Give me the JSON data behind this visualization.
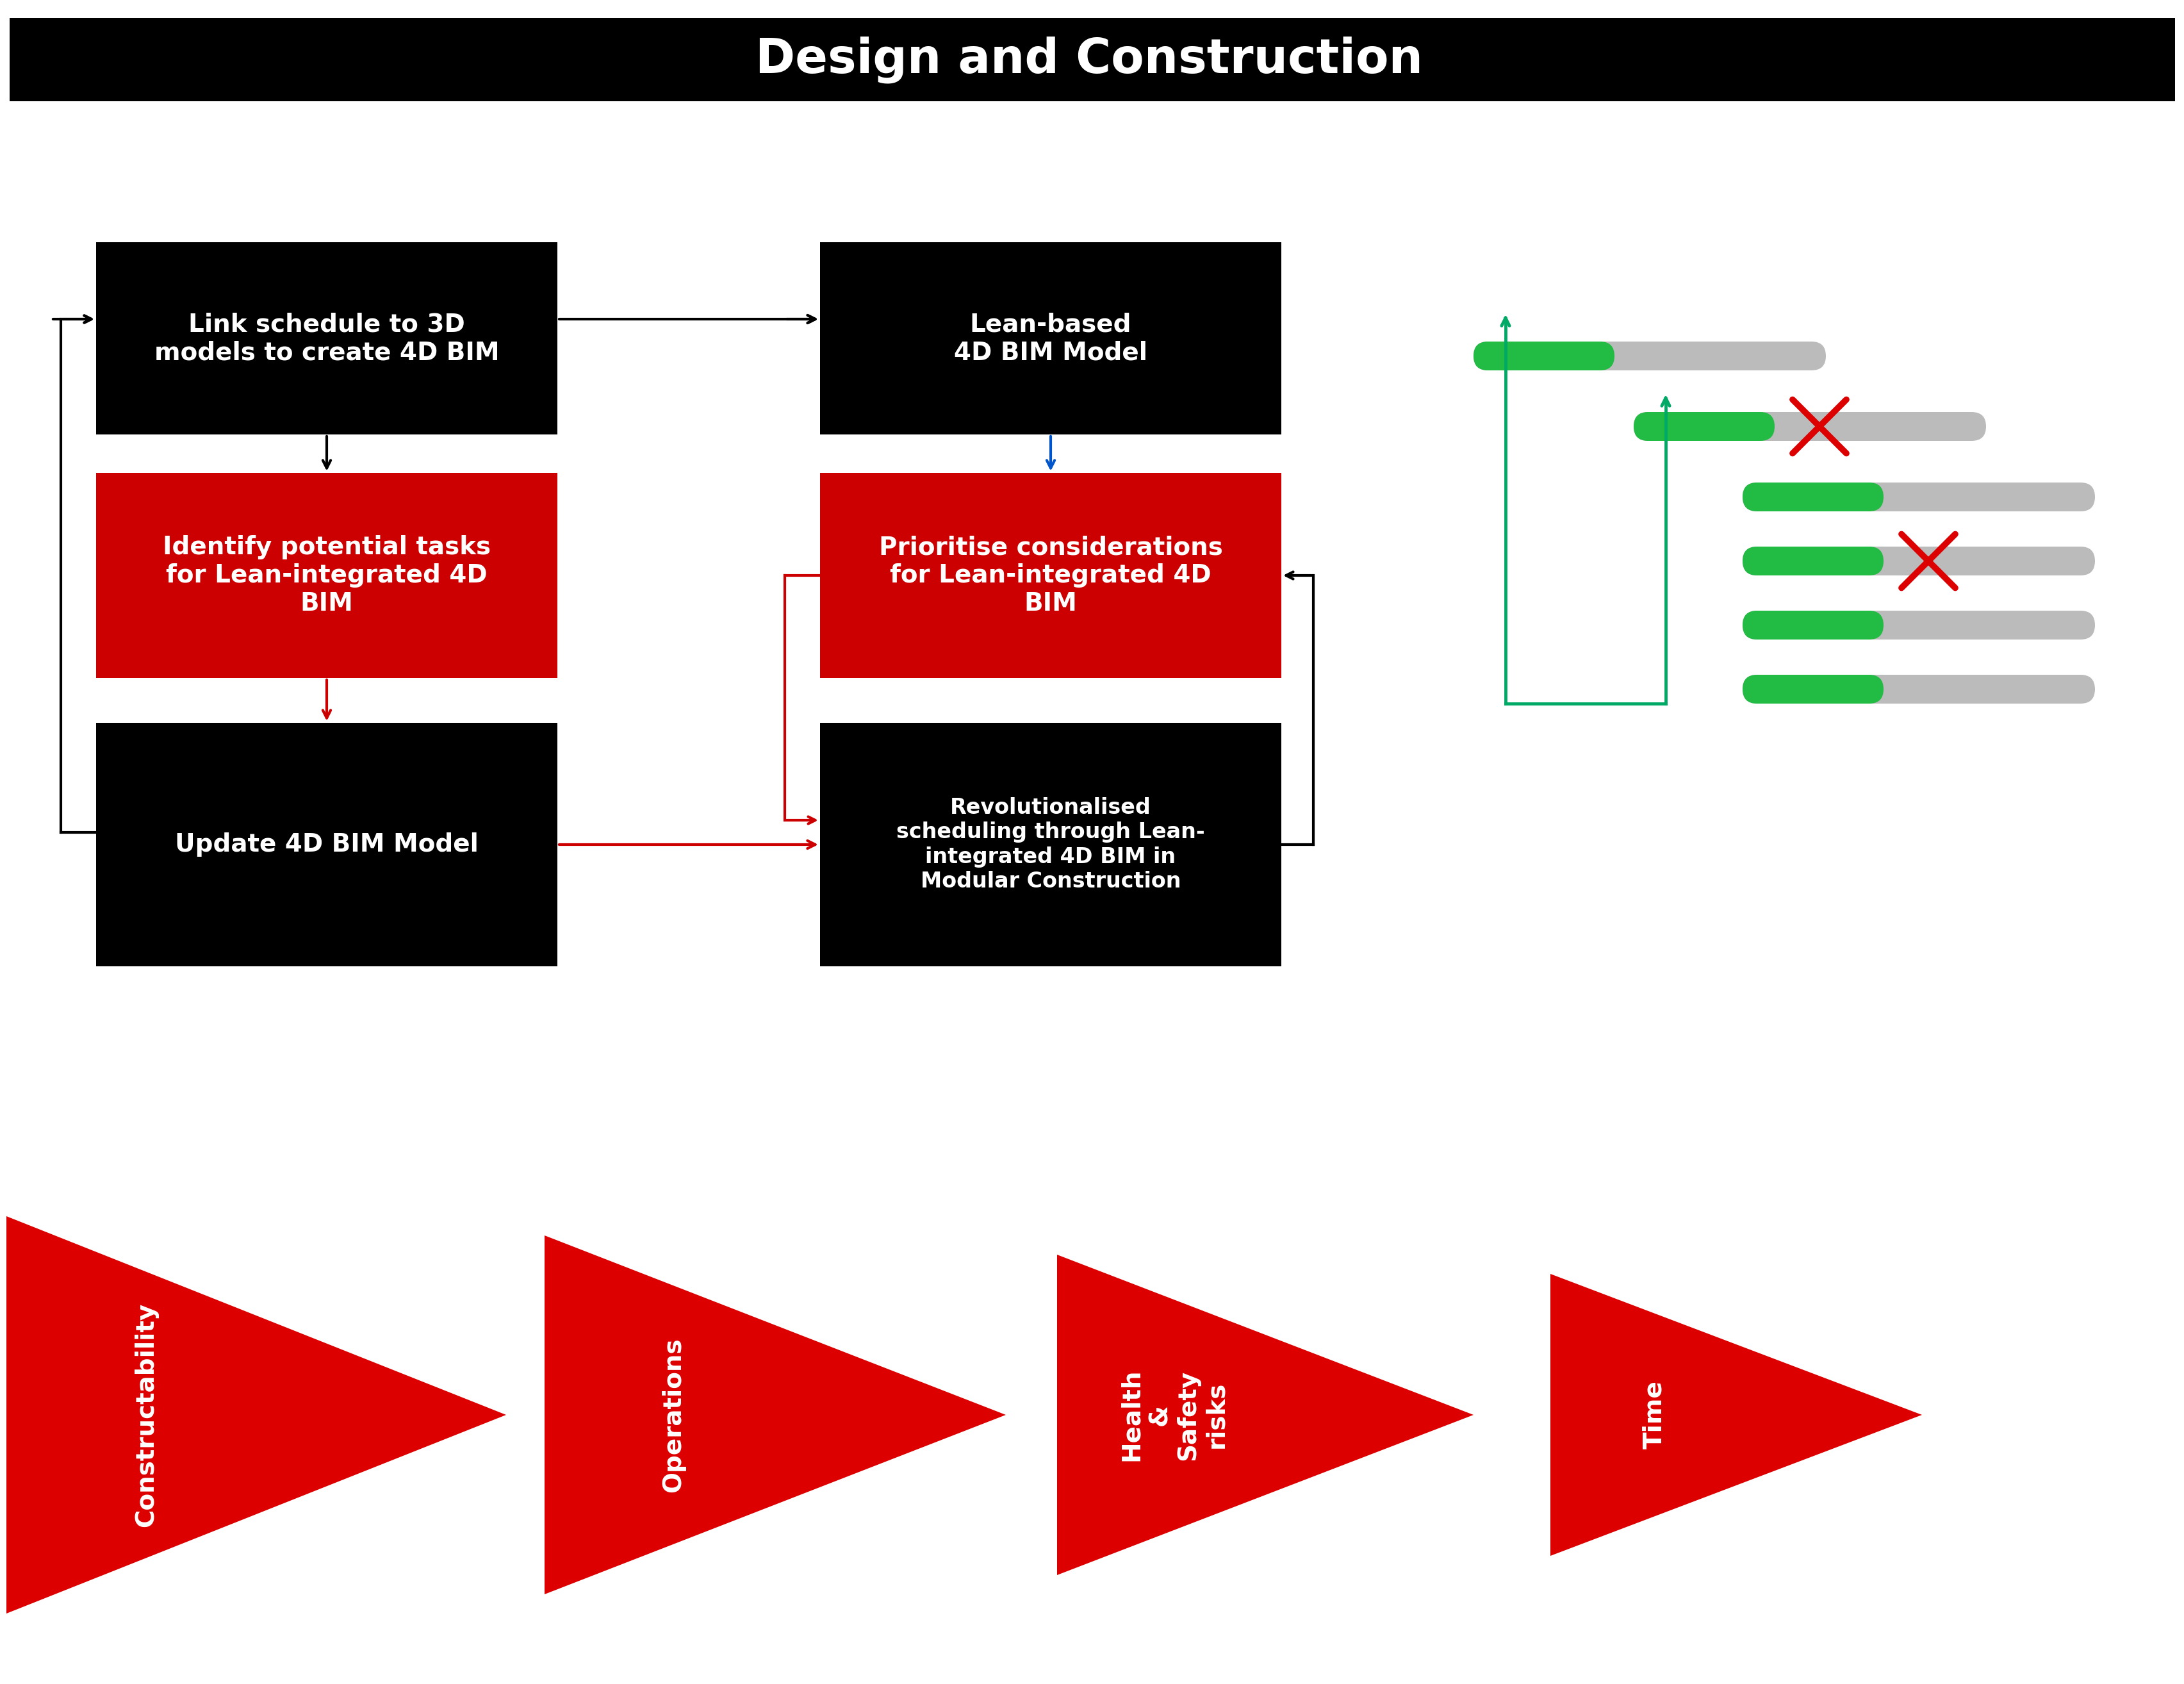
{
  "title": "Design and Construction",
  "title_bg": "#000000",
  "title_color": "#ffffff",
  "bg_color": "#ffffff",
  "box1_text": "Link schedule to 3D\nmodels to create 4D BIM",
  "box1_bg": "#000000",
  "box1_color": "#ffffff",
  "box2_text": "Identify potential tasks\nfor Lean-integrated 4D\nBIM",
  "box2_bg": "#cc0000",
  "box2_color": "#ffffff",
  "box3_text": "Update 4D BIM Model",
  "box3_bg": "#000000",
  "box3_color": "#ffffff",
  "box4_text": "Lean-based\n4D BIM Model",
  "box4_bg": "#000000",
  "box4_color": "#ffffff",
  "box5_text": "Prioritise considerations\nfor Lean-integrated 4D\nBIM",
  "box5_bg": "#cc0000",
  "box5_color": "#ffffff",
  "box6_text": "Revolutionalised\nscheduling through Lean-\nintegrated 4D BIM in\nModular Construction",
  "box6_bg": "#000000",
  "box6_color": "#ffffff",
  "arrow_color_black": "#000000",
  "arrow_color_red": "#cc0000",
  "arrow_color_blue": "#0055cc",
  "arrow_color_green": "#00aa66",
  "red_color": "#dd0000",
  "green_color": "#22bb44",
  "green_dark": "#00aa66",
  "gray_color": "#bbbbbb",
  "white": "#ffffff",
  "arrow_labels": [
    "Constructability",
    "Operations",
    "Health\n&\nSafety\nrisks",
    "Time"
  ]
}
